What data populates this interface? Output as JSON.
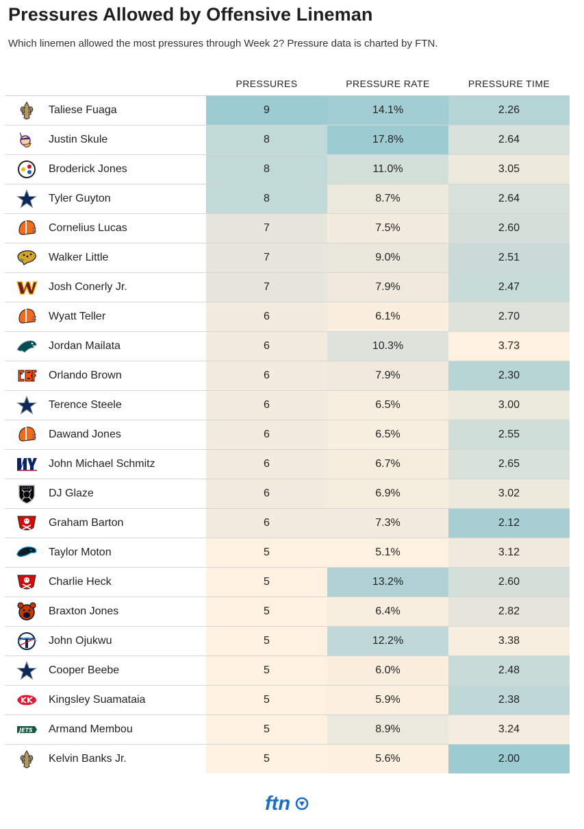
{
  "title": "Pressures Allowed by Offensive Lineman",
  "subtitle": "Which linemen allowed the most pressures through Week 2? Pressure data is charted by FTN.",
  "brand": "ftn",
  "colors": {
    "high": "#9ccbd2",
    "mid": "#e6e6dc",
    "low": "#fff1e0",
    "text": "#222222",
    "brand": "#1a6fc2"
  },
  "chart_data": {
    "type": "table",
    "title": "Pressures Allowed by Offensive Lineman",
    "columns": [
      "",
      "",
      "PRESSURES",
      "PRESSURE RATE",
      "PRESSURE TIME"
    ],
    "rows": [
      {
        "team": "saints-icon",
        "player": "Taliese Fuaga",
        "pressures": 9,
        "pressures_display": "9",
        "rate": 14.1,
        "rate_display": "14.1%",
        "time": 2.26,
        "time_display": "2.26"
      },
      {
        "team": "vikings-icon",
        "player": "Justin Skule",
        "pressures": 8,
        "pressures_display": "8",
        "rate": 17.8,
        "rate_display": "17.8%",
        "time": 2.64,
        "time_display": "2.64"
      },
      {
        "team": "steelers-icon",
        "player": "Broderick Jones",
        "pressures": 8,
        "pressures_display": "8",
        "rate": 11.0,
        "rate_display": "11.0%",
        "time": 3.05,
        "time_display": "3.05"
      },
      {
        "team": "cowboys-icon",
        "player": "Tyler Guyton",
        "pressures": 8,
        "pressures_display": "8",
        "rate": 8.7,
        "rate_display": "8.7%",
        "time": 2.64,
        "time_display": "2.64"
      },
      {
        "team": "browns-icon",
        "player": "Cornelius Lucas",
        "pressures": 7,
        "pressures_display": "7",
        "rate": 7.5,
        "rate_display": "7.5%",
        "time": 2.6,
        "time_display": "2.60"
      },
      {
        "team": "jaguars-icon",
        "player": "Walker Little",
        "pressures": 7,
        "pressures_display": "7",
        "rate": 9.0,
        "rate_display": "9.0%",
        "time": 2.51,
        "time_display": "2.51"
      },
      {
        "team": "commanders-icon",
        "player": "Josh Conerly Jr.",
        "pressures": 7,
        "pressures_display": "7",
        "rate": 7.9,
        "rate_display": "7.9%",
        "time": 2.47,
        "time_display": "2.47"
      },
      {
        "team": "browns-icon",
        "player": "Wyatt Teller",
        "pressures": 6,
        "pressures_display": "6",
        "rate": 6.1,
        "rate_display": "6.1%",
        "time": 2.7,
        "time_display": "2.70"
      },
      {
        "team": "eagles-icon",
        "player": "Jordan Mailata",
        "pressures": 6,
        "pressures_display": "6",
        "rate": 10.3,
        "rate_display": "10.3%",
        "time": 3.73,
        "time_display": "3.73"
      },
      {
        "team": "bengals-icon",
        "player": "Orlando Brown",
        "pressures": 6,
        "pressures_display": "6",
        "rate": 7.9,
        "rate_display": "7.9%",
        "time": 2.3,
        "time_display": "2.30"
      },
      {
        "team": "cowboys-icon",
        "player": "Terence Steele",
        "pressures": 6,
        "pressures_display": "6",
        "rate": 6.5,
        "rate_display": "6.5%",
        "time": 3.0,
        "time_display": "3.00"
      },
      {
        "team": "browns-icon",
        "player": "Dawand Jones",
        "pressures": 6,
        "pressures_display": "6",
        "rate": 6.5,
        "rate_display": "6.5%",
        "time": 2.55,
        "time_display": "2.55"
      },
      {
        "team": "giants-icon",
        "player": "John Michael Schmitz",
        "pressures": 6,
        "pressures_display": "6",
        "rate": 6.7,
        "rate_display": "6.7%",
        "time": 2.65,
        "time_display": "2.65"
      },
      {
        "team": "raiders-icon",
        "player": "DJ Glaze",
        "pressures": 6,
        "pressures_display": "6",
        "rate": 6.9,
        "rate_display": "6.9%",
        "time": 3.02,
        "time_display": "3.02"
      },
      {
        "team": "buccaneers-icon",
        "player": "Graham Barton",
        "pressures": 6,
        "pressures_display": "6",
        "rate": 7.3,
        "rate_display": "7.3%",
        "time": 2.12,
        "time_display": "2.12"
      },
      {
        "team": "panthers-icon",
        "player": "Taylor Moton",
        "pressures": 5,
        "pressures_display": "5",
        "rate": 5.1,
        "rate_display": "5.1%",
        "time": 3.12,
        "time_display": "3.12"
      },
      {
        "team": "buccaneers-icon",
        "player": "Charlie Heck",
        "pressures": 5,
        "pressures_display": "5",
        "rate": 13.2,
        "rate_display": "13.2%",
        "time": 2.6,
        "time_display": "2.60"
      },
      {
        "team": "bears-icon",
        "player": "Braxton Jones",
        "pressures": 5,
        "pressures_display": "5",
        "rate": 6.4,
        "rate_display": "6.4%",
        "time": 2.82,
        "time_display": "2.82"
      },
      {
        "team": "titans-icon",
        "player": "John Ojukwu",
        "pressures": 5,
        "pressures_display": "5",
        "rate": 12.2,
        "rate_display": "12.2%",
        "time": 3.38,
        "time_display": "3.38"
      },
      {
        "team": "cowboys-icon",
        "player": "Cooper Beebe",
        "pressures": 5,
        "pressures_display": "5",
        "rate": 6.0,
        "rate_display": "6.0%",
        "time": 2.48,
        "time_display": "2.48"
      },
      {
        "team": "chiefs-icon",
        "player": "Kingsley Suamataia",
        "pressures": 5,
        "pressures_display": "5",
        "rate": 5.9,
        "rate_display": "5.9%",
        "time": 2.38,
        "time_display": "2.38"
      },
      {
        "team": "jets-icon",
        "player": "Armand Membou",
        "pressures": 5,
        "pressures_display": "5",
        "rate": 8.9,
        "rate_display": "8.9%",
        "time": 3.24,
        "time_display": "3.24"
      },
      {
        "team": "saints-icon",
        "player": "Kelvin Banks Jr.",
        "pressures": 5,
        "pressures_display": "5",
        "rate": 5.6,
        "rate_display": "5.6%",
        "time": 2.0,
        "time_display": "2.00"
      }
    ]
  }
}
